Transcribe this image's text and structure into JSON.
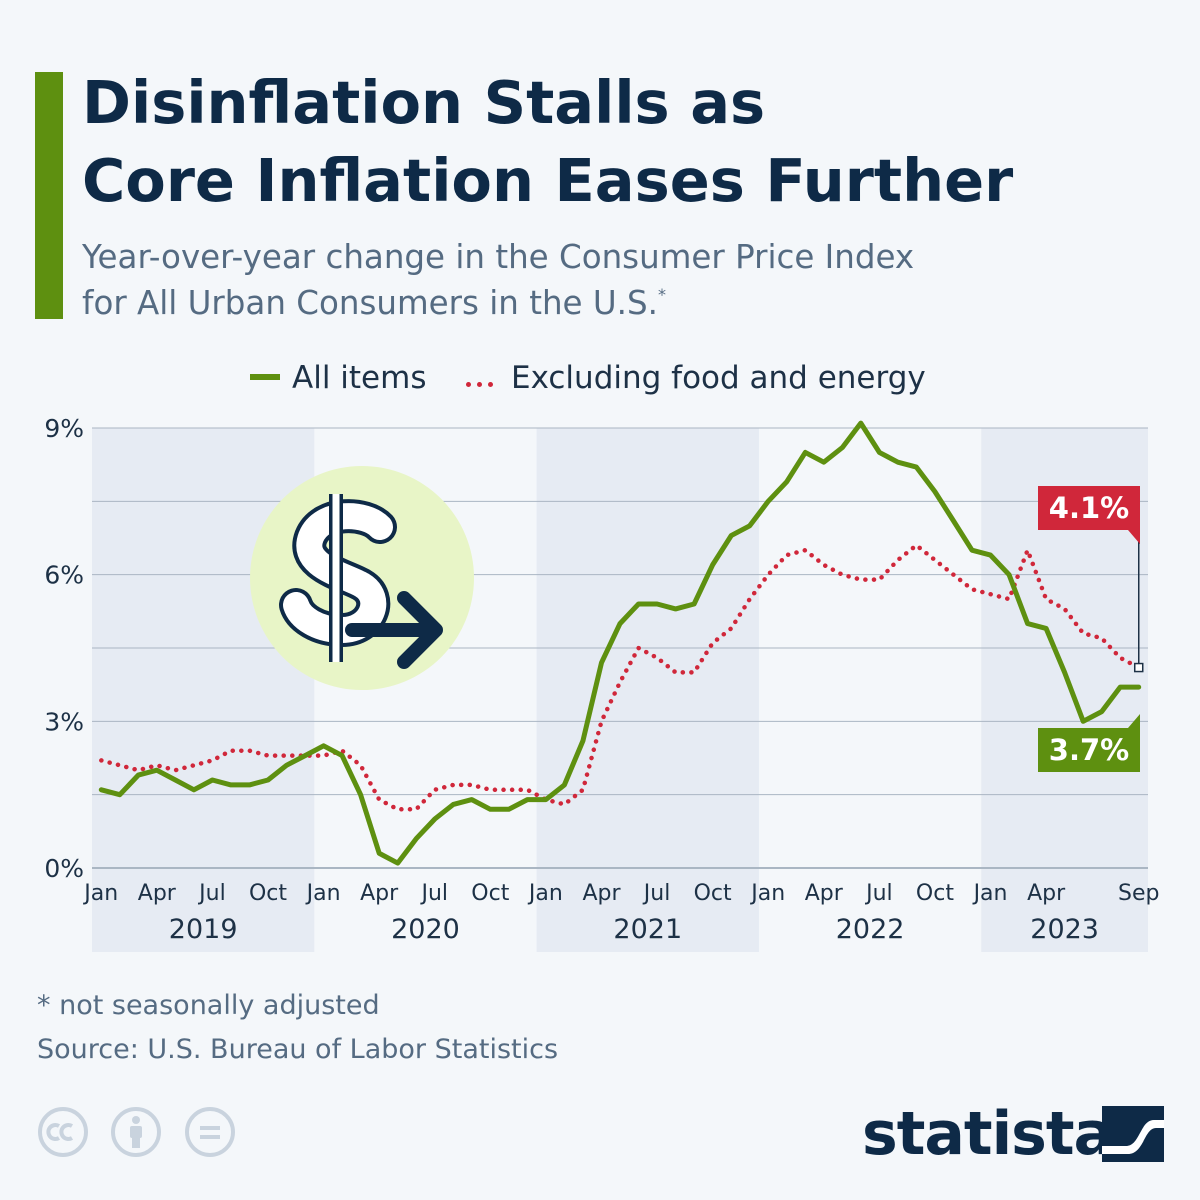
{
  "title": [
    "Disinflation Stalls as",
    "Core Inflation Eases Further"
  ],
  "subtitle": [
    "Year-over-year change in the Consumer Price Index",
    "for All Urban Consumers in the U.S."
  ],
  "subtitle_mark": "*",
  "legend": {
    "all_items": "All items",
    "core": "Excluding food and energy"
  },
  "footnote": "* not seasonally adjusted",
  "source": "Source: U.S. Bureau of Labor Statistics",
  "brand": "statista",
  "license_icons": [
    "cc-icon",
    "attribution-icon",
    "no-derivatives-icon"
  ],
  "colors": {
    "all_items": "#5e9010",
    "core": "#d0273a",
    "title": "#0e2a47",
    "accent": "#5e9010",
    "band": "#e6ebf3",
    "illustration_circle": "#e8f5c7"
  },
  "chart_data": {
    "type": "line",
    "title": "Disinflation Stalls as Core Inflation Eases Further",
    "xlabel": "",
    "ylabel": "",
    "ylim": [
      0,
      9
    ],
    "y_ticks": [
      "0%",
      "3%",
      "6%",
      "9%"
    ],
    "grid": true,
    "x_month_ticks": [
      {
        "label": "Jan",
        "index": 0
      },
      {
        "label": "Apr",
        "index": 3
      },
      {
        "label": "Jul",
        "index": 6
      },
      {
        "label": "Oct",
        "index": 9
      },
      {
        "label": "Jan",
        "index": 12
      },
      {
        "label": "Apr",
        "index": 15
      },
      {
        "label": "Jul",
        "index": 18
      },
      {
        "label": "Oct",
        "index": 21
      },
      {
        "label": "Jan",
        "index": 24
      },
      {
        "label": "Apr",
        "index": 27
      },
      {
        "label": "Jul",
        "index": 30
      },
      {
        "label": "Oct",
        "index": 33
      },
      {
        "label": "Jan",
        "index": 36
      },
      {
        "label": "Apr",
        "index": 39
      },
      {
        "label": "Jul",
        "index": 42
      },
      {
        "label": "Oct",
        "index": 45
      },
      {
        "label": "Jan",
        "index": 48
      },
      {
        "label": "Apr",
        "index": 51
      },
      {
        "label": "Sep",
        "index": 56
      }
    ],
    "years": [
      {
        "label": "2019",
        "start": 0,
        "end": 11
      },
      {
        "label": "2020",
        "start": 12,
        "end": 23
      },
      {
        "label": "2021",
        "start": 24,
        "end": 35
      },
      {
        "label": "2022",
        "start": 36,
        "end": 47
      },
      {
        "label": "2023",
        "start": 48,
        "end": 56
      }
    ],
    "series": [
      {
        "name": "All items",
        "style": "solid",
        "values": [
          1.6,
          1.5,
          1.9,
          2.0,
          1.8,
          1.6,
          1.8,
          1.7,
          1.7,
          1.8,
          2.1,
          2.3,
          2.5,
          2.3,
          1.5,
          0.3,
          0.1,
          0.6,
          1.0,
          1.3,
          1.4,
          1.2,
          1.2,
          1.4,
          1.4,
          1.7,
          2.6,
          4.2,
          5.0,
          5.4,
          5.4,
          5.3,
          5.4,
          6.2,
          6.8,
          7.0,
          7.5,
          7.9,
          8.5,
          8.3,
          8.6,
          9.1,
          8.5,
          8.3,
          8.2,
          7.7,
          7.1,
          6.5,
          6.4,
          6.0,
          5.0,
          4.9,
          4.0,
          3.0,
          3.2,
          3.7,
          3.7
        ]
      },
      {
        "name": "Excluding food and energy",
        "style": "dotted",
        "values": [
          2.2,
          2.1,
          2.0,
          2.1,
          2.0,
          2.1,
          2.2,
          2.4,
          2.4,
          2.3,
          2.3,
          2.3,
          2.3,
          2.4,
          2.1,
          1.4,
          1.2,
          1.2,
          1.6,
          1.7,
          1.7,
          1.6,
          1.6,
          1.6,
          1.4,
          1.3,
          1.6,
          3.0,
          3.8,
          4.5,
          4.3,
          4.0,
          4.0,
          4.6,
          4.9,
          5.5,
          6.0,
          6.4,
          6.5,
          6.2,
          6.0,
          5.9,
          5.9,
          6.3,
          6.6,
          6.3,
          6.0,
          5.7,
          5.6,
          5.5,
          6.5,
          5.5,
          5.3,
          4.8,
          4.7,
          4.3,
          4.1
        ]
      }
    ],
    "annotations": [
      {
        "series": "Excluding food and energy",
        "label": "4.1%",
        "index": 56
      },
      {
        "series": "All items",
        "label": "3.7%",
        "index": 56
      }
    ]
  }
}
